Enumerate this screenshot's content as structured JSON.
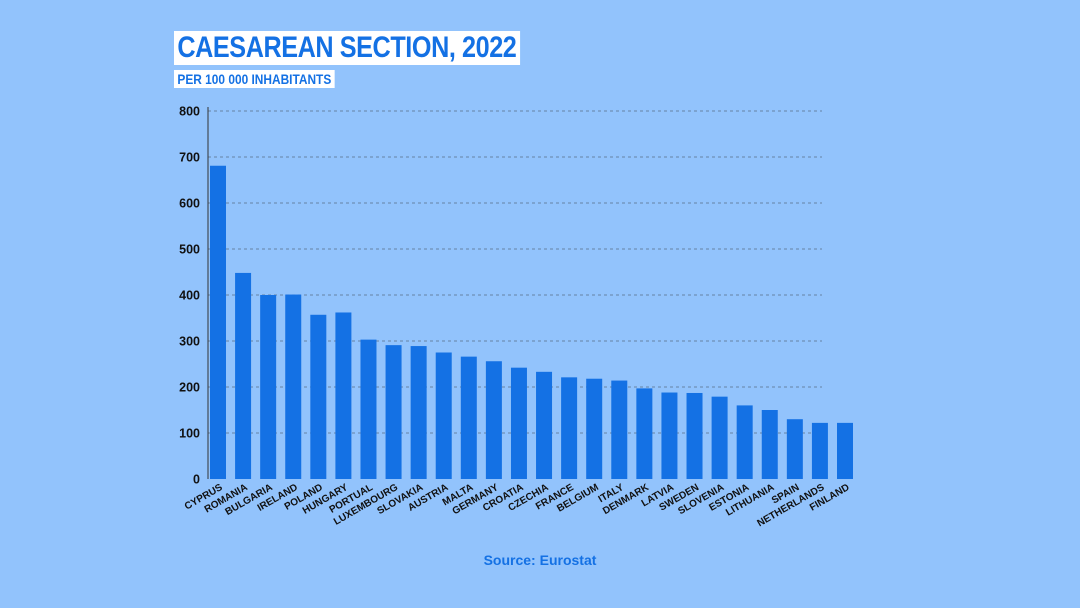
{
  "title": "CAESAREAN SECTION, 2022",
  "subtitle": "PER 100 000 INHABITANTS",
  "source": "Source: Eurostat",
  "colors": {
    "background": "#92c3fc",
    "bar": "#1471e4",
    "title_text": "#1471e4",
    "title_box": "#ffffff",
    "grid": "#5a6f86"
  },
  "chart_data": {
    "type": "bar",
    "title": "CAESAREAN SECTION, 2022",
    "subtitle": "PER 100 000 INHABITANTS",
    "xlabel": "",
    "ylabel": "",
    "ylim": [
      0,
      800
    ],
    "yticks": [
      0,
      100,
      200,
      300,
      400,
      500,
      600,
      700,
      800
    ],
    "grid": "horizontal dashed",
    "categories": [
      "CYPRUS",
      "ROMANIA",
      "BULGARIA",
      "IRELAND",
      "POLAND",
      "HUNGARY",
      "PORTUAL",
      "LUXEMBOURG",
      "SLOVAKIA",
      "AUSTRIA",
      "MALTA",
      "GERMANY",
      "CROATIA",
      "CZECHIA",
      "FRANCE",
      "BELGIUM",
      "ITALY",
      "DENMARK",
      "LATVIA",
      "SWEDEN",
      "SLOVENIA",
      "ESTONIA",
      "LITHUANIA",
      "SPAIN",
      "NETHERLANDS",
      "FINLAND"
    ],
    "values": [
      681,
      448,
      400,
      401,
      357,
      362,
      303,
      291,
      289,
      275,
      266,
      256,
      242,
      233,
      221,
      218,
      214,
      197,
      188,
      187,
      179,
      160,
      150,
      130,
      122,
      122
    ]
  }
}
